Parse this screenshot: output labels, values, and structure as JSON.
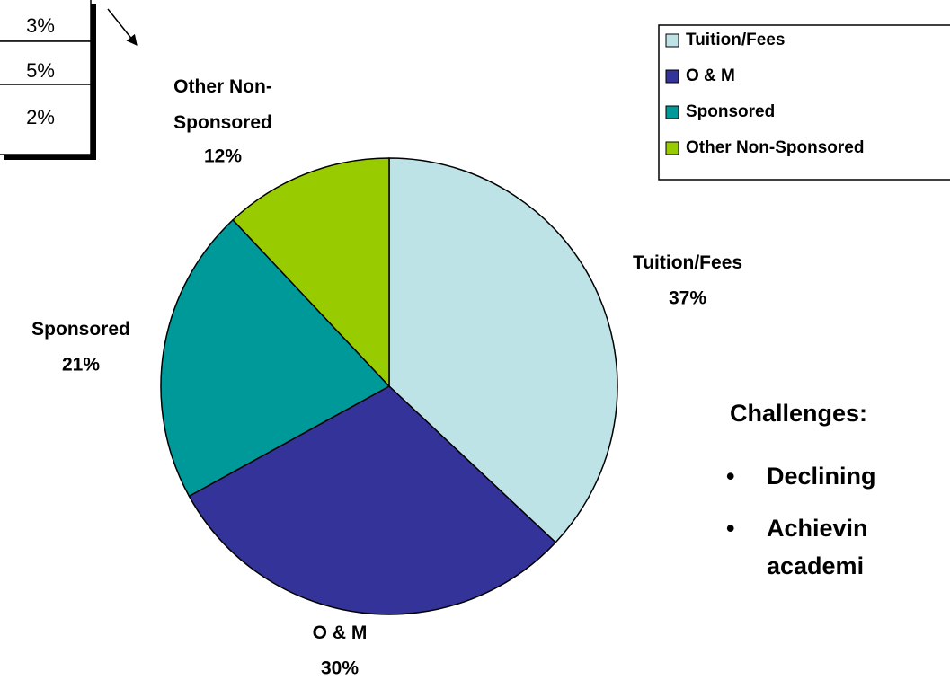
{
  "chart_data": {
    "type": "pie",
    "categories": [
      "Tuition/Fees",
      "O & M",
      "Sponsored",
      "Other Non-Sponsored"
    ],
    "values": [
      37,
      30,
      21,
      12
    ],
    "value_labels": [
      "37%",
      "30%",
      "21%",
      "12%"
    ],
    "colors": [
      "#bde3e6",
      "#333399",
      "#009999",
      "#99cc00"
    ],
    "legend": "top-right"
  },
  "table": {
    "rows": [
      "3%",
      "5%",
      "2%"
    ]
  },
  "challenges": {
    "title": "Challenges:",
    "bullets": [
      "Declining",
      "Achievin",
      "academi"
    ]
  }
}
